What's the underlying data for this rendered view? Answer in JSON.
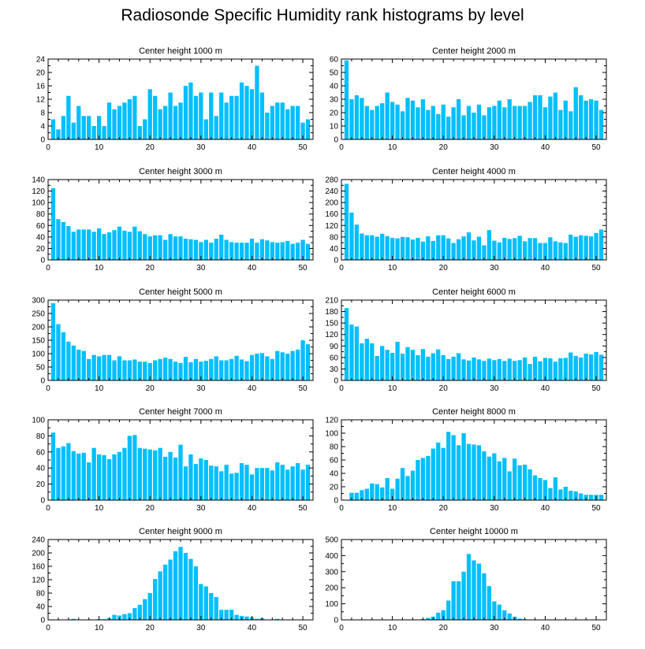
{
  "title": "Radiosonde Specific Humidity rank histograms by level",
  "colors": {
    "bar": "#00bfff",
    "axis": "#000000",
    "background": "#ffffff"
  },
  "chart_data": [
    {
      "type": "bar",
      "title": "Center height 1000 m",
      "xlim": [
        0,
        52
      ],
      "xticks": [
        0,
        10,
        20,
        30,
        40,
        50
      ],
      "ylim": [
        0,
        24
      ],
      "yticks": [
        0,
        4,
        8,
        12,
        16,
        20,
        24
      ],
      "x": [
        1,
        2,
        3,
        4,
        5,
        6,
        7,
        8,
        9,
        10,
        11,
        12,
        13,
        14,
        15,
        16,
        17,
        18,
        19,
        20,
        21,
        22,
        23,
        24,
        25,
        26,
        27,
        28,
        29,
        30,
        31,
        32,
        33,
        34,
        35,
        36,
        37,
        38,
        39,
        40,
        41,
        42,
        43,
        44,
        45,
        46,
        47,
        48,
        49,
        50,
        51
      ],
      "values": [
        6,
        3,
        7,
        13,
        5,
        10,
        7,
        7,
        4,
        7,
        4,
        11,
        9,
        10,
        11,
        12,
        13,
        4,
        6,
        15,
        13,
        9,
        10,
        14,
        10,
        11,
        16,
        17,
        13,
        14,
        6,
        14,
        7,
        14,
        11,
        13,
        13,
        17,
        16,
        15,
        22,
        14,
        8,
        10,
        11,
        11,
        9,
        10,
        10,
        5,
        6
      ]
    },
    {
      "type": "bar",
      "title": "Center height 2000 m",
      "xlim": [
        0,
        52
      ],
      "xticks": [
        0,
        10,
        20,
        30,
        40,
        50
      ],
      "ylim": [
        0,
        60
      ],
      "yticks": [
        0,
        10,
        20,
        30,
        40,
        50,
        60
      ],
      "x": [
        1,
        2,
        3,
        4,
        5,
        6,
        7,
        8,
        9,
        10,
        11,
        12,
        13,
        14,
        15,
        16,
        17,
        18,
        19,
        20,
        21,
        22,
        23,
        24,
        25,
        26,
        27,
        28,
        29,
        30,
        31,
        32,
        33,
        34,
        35,
        36,
        37,
        38,
        39,
        40,
        41,
        42,
        43,
        44,
        45,
        46,
        47,
        48,
        49,
        50,
        51
      ],
      "values": [
        59,
        30,
        33,
        31,
        25,
        22,
        25,
        27,
        35,
        28,
        26,
        21,
        31,
        29,
        24,
        30,
        22,
        25,
        19,
        26,
        17,
        24,
        30,
        18,
        25,
        20,
        26,
        18,
        24,
        25,
        29,
        24,
        30,
        25,
        25,
        25,
        28,
        33,
        33,
        24,
        32,
        35,
        22,
        29,
        21,
        39,
        33,
        29,
        30,
        29,
        22
      ]
    },
    {
      "type": "bar",
      "title": "Center height 3000 m",
      "xlim": [
        0,
        52
      ],
      "xticks": [
        0,
        10,
        20,
        30,
        40,
        50
      ],
      "ylim": [
        0,
        140
      ],
      "yticks": [
        0,
        20,
        40,
        60,
        80,
        100,
        120,
        140
      ],
      "x": [
        1,
        2,
        3,
        4,
        5,
        6,
        7,
        8,
        9,
        10,
        11,
        12,
        13,
        14,
        15,
        16,
        17,
        18,
        19,
        20,
        21,
        22,
        23,
        24,
        25,
        26,
        27,
        28,
        29,
        30,
        31,
        32,
        33,
        34,
        35,
        36,
        37,
        38,
        39,
        40,
        41,
        42,
        43,
        44,
        45,
        46,
        47,
        48,
        49,
        50,
        51
      ],
      "values": [
        125,
        71,
        66,
        59,
        49,
        53,
        53,
        53,
        49,
        55,
        45,
        48,
        52,
        58,
        51,
        49,
        58,
        50,
        45,
        41,
        43,
        43,
        35,
        45,
        41,
        41,
        37,
        36,
        35,
        31,
        35,
        30,
        37,
        44,
        35,
        31,
        30,
        30,
        30,
        37,
        30,
        36,
        34,
        31,
        30,
        31,
        33,
        28,
        30,
        35,
        28
      ]
    },
    {
      "type": "bar",
      "title": "Center height 4000 m",
      "xlim": [
        0,
        52
      ],
      "xticks": [
        0,
        10,
        20,
        30,
        40,
        50
      ],
      "ylim": [
        0,
        280
      ],
      "yticks": [
        0,
        40,
        80,
        120,
        160,
        200,
        240,
        280
      ],
      "x": [
        1,
        2,
        3,
        4,
        5,
        6,
        7,
        8,
        9,
        10,
        11,
        12,
        13,
        14,
        15,
        16,
        17,
        18,
        19,
        20,
        21,
        22,
        23,
        24,
        25,
        26,
        27,
        28,
        29,
        30,
        31,
        32,
        33,
        34,
        35,
        36,
        37,
        38,
        39,
        40,
        41,
        42,
        43,
        44,
        45,
        46,
        47,
        48,
        49,
        50,
        51
      ],
      "values": [
        265,
        165,
        123,
        92,
        86,
        86,
        81,
        91,
        83,
        77,
        75,
        80,
        79,
        71,
        77,
        64,
        82,
        66,
        86,
        86,
        75,
        59,
        72,
        82,
        96,
        68,
        81,
        51,
        104,
        67,
        61,
        77,
        73,
        76,
        84,
        65,
        76,
        76,
        59,
        59,
        79,
        65,
        61,
        59,
        88,
        81,
        86,
        84,
        82,
        94,
        106
      ]
    },
    {
      "type": "bar",
      "title": "Center height 5000 m",
      "xlim": [
        0,
        52
      ],
      "xticks": [
        0,
        10,
        20,
        30,
        40,
        50
      ],
      "ylim": [
        0,
        300
      ],
      "yticks": [
        0,
        50,
        100,
        150,
        200,
        250,
        300
      ],
      "x": [
        1,
        2,
        3,
        4,
        5,
        6,
        7,
        8,
        9,
        10,
        11,
        12,
        13,
        14,
        15,
        16,
        17,
        18,
        19,
        20,
        21,
        22,
        23,
        24,
        25,
        26,
        27,
        28,
        29,
        30,
        31,
        32,
        33,
        34,
        35,
        36,
        37,
        38,
        39,
        40,
        41,
        42,
        43,
        44,
        45,
        46,
        47,
        48,
        49,
        50,
        51
      ],
      "values": [
        288,
        210,
        180,
        145,
        130,
        115,
        110,
        80,
        95,
        90,
        95,
        95,
        75,
        90,
        75,
        75,
        78,
        70,
        70,
        65,
        75,
        80,
        85,
        80,
        70,
        65,
        88,
        68,
        80,
        70,
        73,
        80,
        90,
        75,
        75,
        80,
        92,
        78,
        72,
        95,
        100,
        102,
        90,
        80,
        110,
        105,
        100,
        110,
        115,
        150,
        135
      ]
    },
    {
      "type": "bar",
      "title": "Center height 6000 m",
      "xlim": [
        0,
        52
      ],
      "xticks": [
        0,
        10,
        20,
        30,
        40,
        50
      ],
      "ylim": [
        0,
        210
      ],
      "yticks": [
        0,
        30,
        60,
        90,
        120,
        150,
        180,
        210
      ],
      "x": [
        1,
        2,
        3,
        4,
        5,
        6,
        7,
        8,
        9,
        10,
        11,
        12,
        13,
        14,
        15,
        16,
        17,
        18,
        19,
        20,
        21,
        22,
        23,
        24,
        25,
        26,
        27,
        28,
        29,
        30,
        31,
        32,
        33,
        34,
        35,
        36,
        37,
        38,
        39,
        40,
        41,
        42,
        43,
        44,
        45,
        46,
        47,
        48,
        49,
        50,
        51
      ],
      "values": [
        189,
        146,
        141,
        97,
        109,
        97,
        64,
        90,
        80,
        72,
        101,
        70,
        87,
        80,
        66,
        82,
        62,
        71,
        81,
        66,
        56,
        62,
        71,
        55,
        52,
        60,
        55,
        51,
        57,
        53,
        56,
        51,
        57,
        51,
        53,
        60,
        43,
        62,
        50,
        59,
        58,
        49,
        58,
        59,
        73,
        64,
        60,
        70,
        68,
        74,
        67
      ]
    },
    {
      "type": "bar",
      "title": "Center height 7000 m",
      "xlim": [
        0,
        52
      ],
      "xticks": [
        0,
        10,
        20,
        30,
        40,
        50
      ],
      "ylim": [
        0,
        100
      ],
      "yticks": [
        0,
        20,
        40,
        60,
        80,
        100
      ],
      "x": [
        1,
        2,
        3,
        4,
        5,
        6,
        7,
        8,
        9,
        10,
        11,
        12,
        13,
        14,
        15,
        16,
        17,
        18,
        19,
        20,
        21,
        22,
        23,
        24,
        25,
        26,
        27,
        28,
        29,
        30,
        31,
        32,
        33,
        34,
        35,
        36,
        37,
        38,
        39,
        40,
        41,
        42,
        43,
        44,
        45,
        46,
        47,
        48,
        49,
        50,
        51
      ],
      "values": [
        84,
        65,
        67,
        71,
        61,
        58,
        59,
        47,
        65,
        57,
        56,
        51,
        57,
        60,
        65,
        80,
        81,
        65,
        64,
        63,
        62,
        65,
        54,
        60,
        53,
        69,
        42,
        57,
        45,
        52,
        50,
        43,
        42,
        36,
        44,
        33,
        34,
        46,
        44,
        32,
        40,
        40,
        40,
        37,
        47,
        44,
        38,
        42,
        46,
        38,
        44
      ]
    },
    {
      "type": "bar",
      "title": "Center height 8000 m",
      "xlim": [
        0,
        52
      ],
      "xticks": [
        0,
        10,
        20,
        30,
        40,
        50
      ],
      "ylim": [
        0,
        120
      ],
      "yticks": [
        0,
        20,
        40,
        60,
        80,
        100,
        120
      ],
      "x": [
        1,
        2,
        3,
        4,
        5,
        6,
        7,
        8,
        9,
        10,
        11,
        12,
        13,
        14,
        15,
        16,
        17,
        18,
        19,
        20,
        21,
        22,
        23,
        24,
        25,
        26,
        27,
        28,
        29,
        30,
        31,
        32,
        33,
        34,
        35,
        36,
        37,
        38,
        39,
        40,
        41,
        42,
        43,
        44,
        45,
        46,
        47,
        48,
        49,
        50,
        51
      ],
      "values": [
        0,
        11,
        11,
        15,
        17,
        25,
        24,
        19,
        33,
        17,
        32,
        48,
        36,
        44,
        60,
        63,
        66,
        77,
        86,
        78,
        102,
        97,
        82,
        100,
        84,
        83,
        82,
        73,
        65,
        70,
        58,
        63,
        43,
        62,
        52,
        53,
        46,
        37,
        33,
        30,
        18,
        34,
        16,
        20,
        14,
        13,
        10,
        8,
        8,
        8,
        8
      ]
    },
    {
      "type": "bar",
      "title": "Center height 9000 m",
      "xlim": [
        0,
        52
      ],
      "xticks": [
        0,
        10,
        20,
        30,
        40,
        50
      ],
      "ylim": [
        0,
        240
      ],
      "yticks": [
        0,
        40,
        80,
        120,
        160,
        200,
        240
      ],
      "x": [
        1,
        2,
        3,
        4,
        5,
        6,
        7,
        8,
        9,
        10,
        11,
        12,
        13,
        14,
        15,
        16,
        17,
        18,
        19,
        20,
        21,
        22,
        23,
        24,
        25,
        26,
        27,
        28,
        29,
        30,
        31,
        32,
        33,
        34,
        35,
        36,
        37,
        38,
        39,
        40,
        41,
        42,
        43,
        44,
        45,
        46,
        47,
        48,
        49,
        50,
        51
      ],
      "values": [
        0,
        0,
        0,
        0,
        3,
        0,
        0,
        1,
        1,
        2,
        2,
        5,
        15,
        13,
        17,
        20,
        35,
        45,
        62,
        80,
        122,
        145,
        165,
        180,
        205,
        218,
        200,
        182,
        160,
        107,
        100,
        80,
        68,
        30,
        30,
        30,
        15,
        12,
        10,
        8,
        3,
        5,
        1,
        1,
        3,
        0,
        1,
        1,
        0,
        0,
        0
      ]
    },
    {
      "type": "bar",
      "title": "Center height 10000 m",
      "xlim": [
        0,
        52
      ],
      "xticks": [
        0,
        10,
        20,
        30,
        40,
        50
      ],
      "ylim": [
        0,
        500
      ],
      "yticks": [
        0,
        100,
        200,
        300,
        400,
        500
      ],
      "x": [
        1,
        2,
        3,
        4,
        5,
        6,
        7,
        8,
        9,
        10,
        11,
        12,
        13,
        14,
        15,
        16,
        17,
        18,
        19,
        20,
        21,
        22,
        23,
        24,
        25,
        26,
        27,
        28,
        29,
        30,
        31,
        32,
        33,
        34,
        35,
        36,
        37,
        38,
        39,
        40,
        41,
        42,
        43,
        44,
        45,
        46,
        47,
        48,
        49,
        50,
        51
      ],
      "values": [
        0,
        0,
        0,
        0,
        0,
        0,
        0,
        0,
        0,
        0,
        0,
        0,
        0,
        0,
        0,
        5,
        12,
        20,
        45,
        60,
        120,
        240,
        240,
        300,
        410,
        370,
        350,
        290,
        210,
        115,
        95,
        60,
        40,
        20,
        8,
        4,
        2,
        0,
        0,
        0,
        0,
        0,
        0,
        0,
        0,
        0,
        0,
        0,
        0,
        0,
        0
      ]
    }
  ]
}
